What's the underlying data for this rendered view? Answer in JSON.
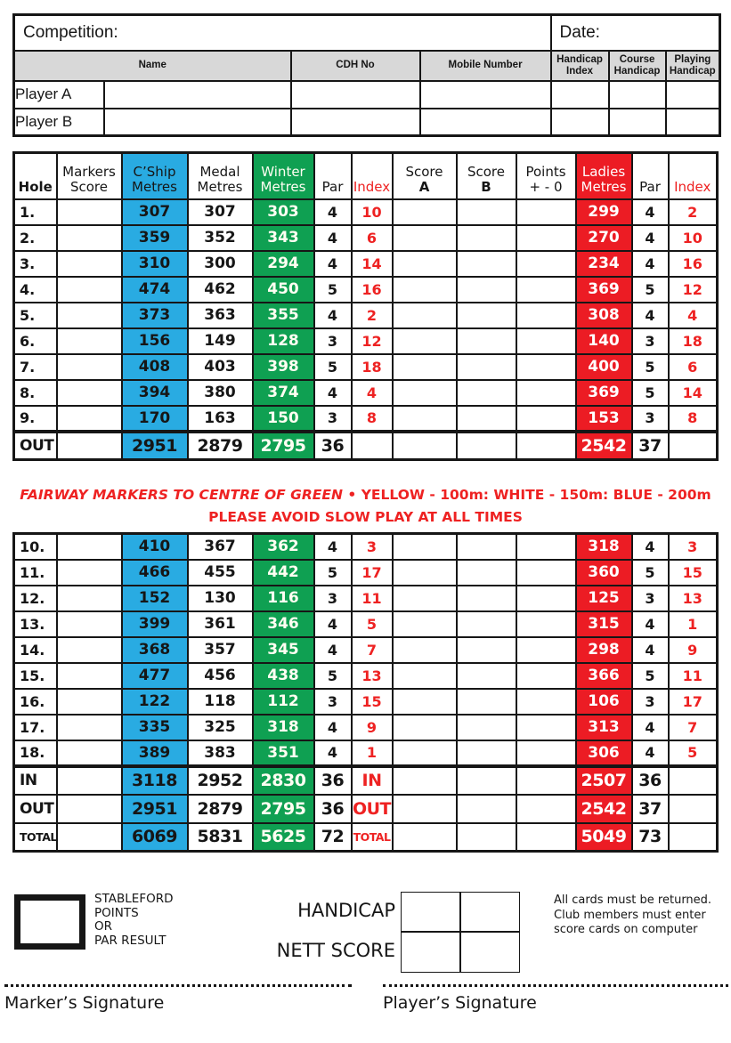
{
  "colors": {
    "blue": "#29ABE2",
    "green": "#0FA052",
    "red": "#EC1C24",
    "red_text": "#EE2222",
    "gray_header": "#D8D8D8"
  },
  "top_table": {
    "competition_label": "Competition:",
    "date_label": "Date:",
    "columns": [
      "Name",
      "CDH No",
      "Mobile Number",
      "Handicap Index",
      "Course Handicap",
      "Playing Handicap"
    ],
    "players": [
      "Player A",
      "Player B"
    ]
  },
  "scorecard": {
    "header": {
      "hole": "Hole",
      "markers_l1": "Markers",
      "markers_l2": "Score",
      "cship_l1": "C’Ship",
      "cship_l2": "Metres",
      "medal_l1": "Medal",
      "medal_l2": "Metres",
      "winter_l1": "Winter",
      "winter_l2": "Metres",
      "par": "Par",
      "index": "Index",
      "score_l1": "Score",
      "score_a": "A",
      "score_b": "B",
      "points_l1": "Points",
      "points_l2": "+ - 0",
      "ladies_l1": "Ladies",
      "ladies_l2": "Metres",
      "par2": "Par",
      "index2": "Index"
    },
    "front": [
      {
        "hole": "1.",
        "cship": "307",
        "medal": "307",
        "winter": "303",
        "par": "4",
        "index": "10",
        "ladies": "299",
        "lpar": "4",
        "lindex": "2"
      },
      {
        "hole": "2.",
        "cship": "359",
        "medal": "352",
        "winter": "343",
        "par": "4",
        "index": "6",
        "ladies": "270",
        "lpar": "4",
        "lindex": "10"
      },
      {
        "hole": "3.",
        "cship": "310",
        "medal": "300",
        "winter": "294",
        "par": "4",
        "index": "14",
        "ladies": "234",
        "lpar": "4",
        "lindex": "16"
      },
      {
        "hole": "4.",
        "cship": "474",
        "medal": "462",
        "winter": "450",
        "par": "5",
        "index": "16",
        "ladies": "369",
        "lpar": "5",
        "lindex": "12"
      },
      {
        "hole": "5.",
        "cship": "373",
        "medal": "363",
        "winter": "355",
        "par": "4",
        "index": "2",
        "ladies": "308",
        "lpar": "4",
        "lindex": "4"
      },
      {
        "hole": "6.",
        "cship": "156",
        "medal": "149",
        "winter": "128",
        "par": "3",
        "index": "12",
        "ladies": "140",
        "lpar": "3",
        "lindex": "18"
      },
      {
        "hole": "7.",
        "cship": "408",
        "medal": "403",
        "winter": "398",
        "par": "5",
        "index": "18",
        "ladies": "400",
        "lpar": "5",
        "lindex": "6"
      },
      {
        "hole": "8.",
        "cship": "394",
        "medal": "380",
        "winter": "374",
        "par": "4",
        "index": "4",
        "ladies": "369",
        "lpar": "5",
        "lindex": "14"
      },
      {
        "hole": "9.",
        "cship": "170",
        "medal": "163",
        "winter": "150",
        "par": "3",
        "index": "8",
        "ladies": "153",
        "lpar": "3",
        "lindex": "8"
      },
      {
        "hole": "OUT",
        "summary": true,
        "cship": "2951",
        "medal": "2879",
        "winter": "2795",
        "par": "36",
        "ladies": "2542",
        "lpar": "37"
      }
    ],
    "back": [
      {
        "hole": "10.",
        "cship": "410",
        "medal": "367",
        "winter": "362",
        "par": "4",
        "index": "3",
        "ladies": "318",
        "lpar": "4",
        "lindex": "3"
      },
      {
        "hole": "11.",
        "cship": "466",
        "medal": "455",
        "winter": "442",
        "par": "5",
        "index": "17",
        "ladies": "360",
        "lpar": "5",
        "lindex": "15"
      },
      {
        "hole": "12.",
        "cship": "152",
        "medal": "130",
        "winter": "116",
        "par": "3",
        "index": "11",
        "ladies": "125",
        "lpar": "3",
        "lindex": "13"
      },
      {
        "hole": "13.",
        "cship": "399",
        "medal": "361",
        "winter": "346",
        "par": "4",
        "index": "5",
        "ladies": "315",
        "lpar": "4",
        "lindex": "1"
      },
      {
        "hole": "14.",
        "cship": "368",
        "medal": "357",
        "winter": "345",
        "par": "4",
        "index": "7",
        "ladies": "298",
        "lpar": "4",
        "lindex": "9"
      },
      {
        "hole": "15.",
        "cship": "477",
        "medal": "456",
        "winter": "438",
        "par": "5",
        "index": "13",
        "ladies": "366",
        "lpar": "5",
        "lindex": "11"
      },
      {
        "hole": "16.",
        "cship": "122",
        "medal": "118",
        "winter": "112",
        "par": "3",
        "index": "15",
        "ladies": "106",
        "lpar": "3",
        "lindex": "17"
      },
      {
        "hole": "17.",
        "cship": "335",
        "medal": "325",
        "winter": "318",
        "par": "4",
        "index": "9",
        "ladies": "313",
        "lpar": "4",
        "lindex": "7"
      },
      {
        "hole": "18.",
        "cship": "389",
        "medal": "383",
        "winter": "351",
        "par": "4",
        "index": "1",
        "ladies": "306",
        "lpar": "4",
        "lindex": "5"
      },
      {
        "hole": "IN",
        "summary": true,
        "cship": "3118",
        "medal": "2952",
        "winter": "2830",
        "par": "36",
        "index": "IN",
        "ladies": "2507",
        "lpar": "36"
      },
      {
        "hole": "OUT",
        "summary": true,
        "cship": "2951",
        "medal": "2879",
        "winter": "2795",
        "par": "36",
        "index": "OUT",
        "ladies": "2542",
        "lpar": "37"
      },
      {
        "hole": "TOTAL",
        "summary": true,
        "cship": "6069",
        "medal": "5831",
        "winter": "5625",
        "par": "72",
        "index": "TOTAL",
        "ladies": "5049",
        "lpar": "73"
      }
    ]
  },
  "notices": {
    "fairway_italic": "FAIRWAY MARKERS TO CENTRE OF GREEN",
    "fairway_bullet": "•",
    "fairway_rest": "YELLOW - 100m: WHITE - 150m: BLUE - 200m",
    "slow_play": "PLEASE AVOID SLOW PLAY AT ALL TIMES"
  },
  "footer": {
    "stableford_lines": [
      "STABLEFORD",
      "POINTS",
      "OR",
      "PAR RESULT"
    ],
    "handicap_label": "HANDICAP",
    "nett_label": "NETT SCORE",
    "note_line1": "All cards must be returned.",
    "note_line2": "Club members must enter score cards on computer",
    "marker_signature": "Marker’s Signature",
    "player_signature": "Player’s Signature"
  }
}
